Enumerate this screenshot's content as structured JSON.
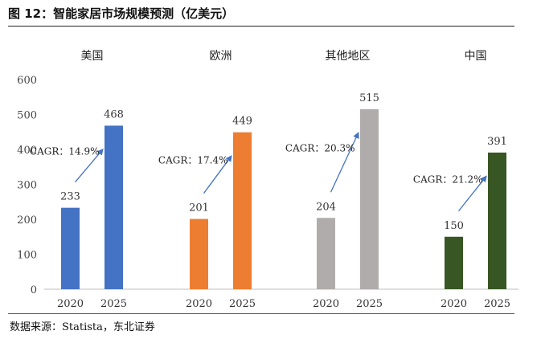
{
  "title": "图 12：智能家居市场规模预测（亿美元）",
  "source": "数据来源：Statista，东北证券",
  "chart_data": {
    "type": "bar",
    "title": "智能家居市场规模预测（亿美元）",
    "ylim": [
      0,
      600
    ],
    "yticks": [
      "0",
      "100",
      "200",
      "300",
      "400",
      "500",
      "600"
    ],
    "groups": [
      {
        "region": "美国",
        "color": "#4472c4",
        "categories": [
          "2020",
          "2025"
        ],
        "values": [
          233,
          468
        ],
        "labels": [
          "233",
          "468"
        ],
        "cagr": "CAGR：14.9%"
      },
      {
        "region": "欧洲",
        "color": "#ed7d31",
        "categories": [
          "2020",
          "2025"
        ],
        "values": [
          201,
          449
        ],
        "labels": [
          "201",
          "449"
        ],
        "cagr": "CAGR：17.4%"
      },
      {
        "region": "其他地区",
        "color": "#b0acab",
        "categories": [
          "2020",
          "2025"
        ],
        "values": [
          204,
          515
        ],
        "labels": [
          "204",
          "515"
        ],
        "cagr": "CAGR：20.3%"
      },
      {
        "region": "中国",
        "color": "#375623",
        "categories": [
          "2020",
          "2025"
        ],
        "values": [
          150,
          391
        ],
        "labels": [
          "150",
          "391"
        ],
        "cagr": "CAGR：21.2%"
      }
    ],
    "arrow_color": "#4472c4"
  }
}
